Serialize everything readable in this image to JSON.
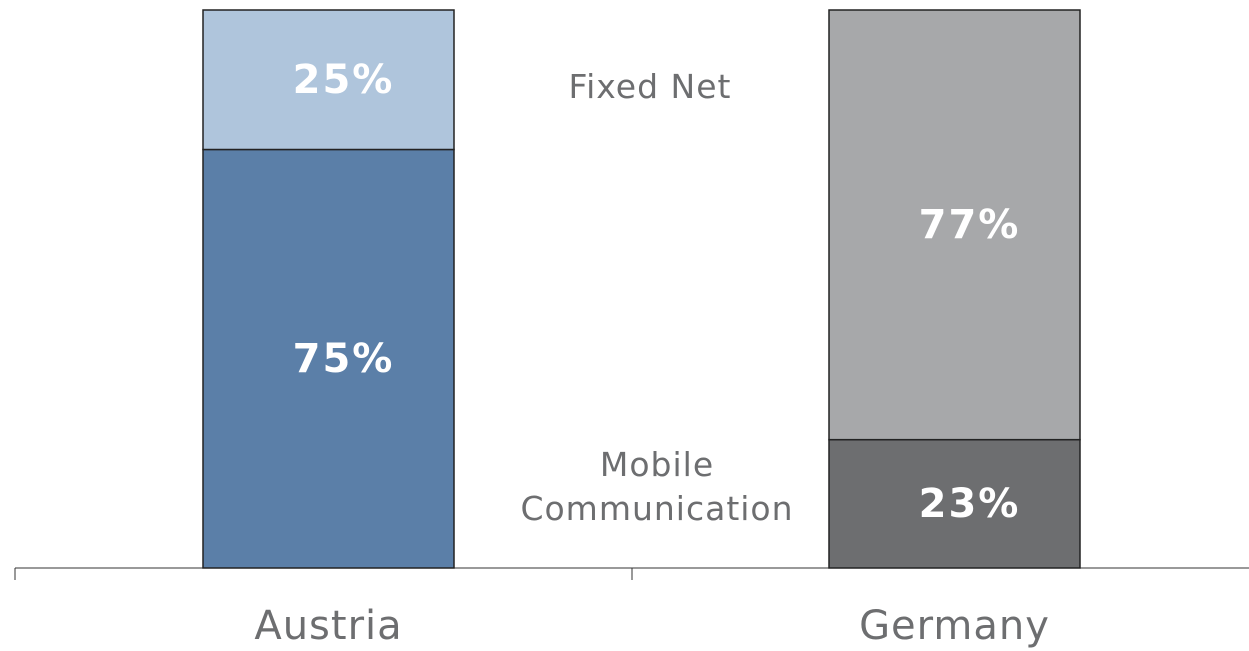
{
  "chart_data": {
    "type": "bar",
    "stacked": true,
    "categories": [
      "Austria",
      "Germany"
    ],
    "series": [
      {
        "name": "Mobile Communication",
        "colors": [
          "#5b7fa8",
          "#6d6e70"
        ],
        "values": [
          75,
          23
        ],
        "value_labels": [
          "75%",
          "23%"
        ]
      },
      {
        "name": "Fixed Net",
        "colors": [
          "#afc5dc",
          "#a7a8aa"
        ],
        "values": [
          25,
          77
        ],
        "value_labels": [
          "25%",
          "77%"
        ]
      }
    ],
    "ylim": [
      0,
      100
    ]
  }
}
